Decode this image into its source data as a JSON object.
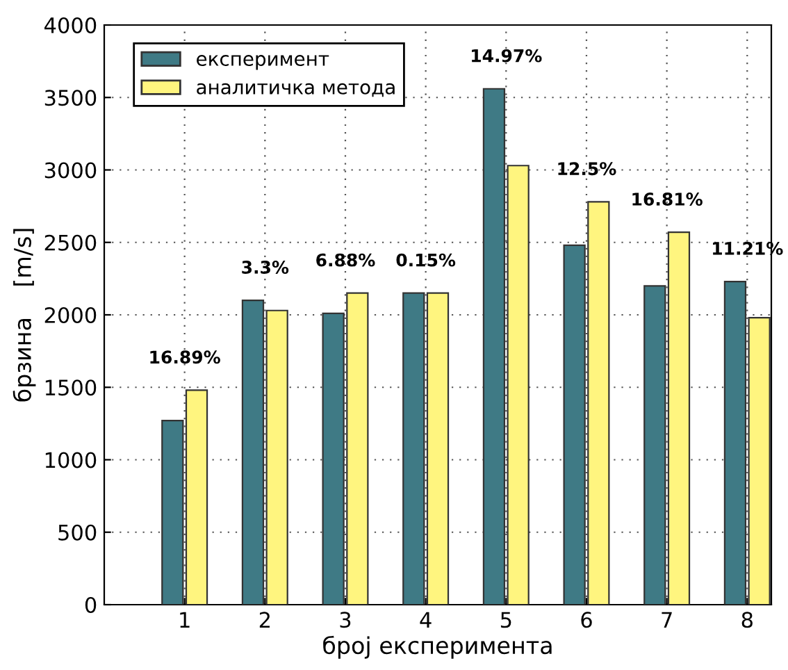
{
  "chart_data": {
    "type": "bar",
    "xlabel": "број експеримента",
    "ylabel": "брзина    [m/s]",
    "x": [
      1,
      2,
      3,
      4,
      5,
      6,
      7,
      8
    ],
    "series": [
      {
        "name": "експеримент",
        "color": "#3f7a85",
        "values": [
          1270,
          2100,
          2010,
          2150,
          3560,
          2480,
          2200,
          2230
        ]
      },
      {
        "name": "аналитичка метода",
        "color": "#fff57f",
        "values": [
          1480,
          2030,
          2150,
          2150,
          3030,
          2780,
          2570,
          1980
        ]
      }
    ],
    "xlim": [
      0,
      8.3
    ],
    "xticks": [
      1,
      2,
      3,
      4,
      5,
      6,
      7,
      8
    ],
    "ylim": [
      0,
      4000
    ],
    "yticks": [
      0,
      500,
      1000,
      1500,
      2000,
      2500,
      3000,
      3500,
      4000
    ],
    "grid": true,
    "legend": "top left",
    "annotations": [
      {
        "text": "16.89%",
        "x": 1,
        "y": 1480
      },
      {
        "text": "3.3%",
        "x": 2,
        "y": 2100
      },
      {
        "text": "6.88%",
        "x": 3,
        "y": 2150
      },
      {
        "text": "0.15%",
        "x": 4,
        "y": 2150
      },
      {
        "text": "14.97%",
        "x": 5,
        "y": 3560
      },
      {
        "text": "12.5%",
        "x": 6,
        "y": 2780
      },
      {
        "text": "16.81%",
        "x": 7,
        "y": 2570
      },
      {
        "text": "11.21%",
        "x": 8,
        "y": 2230
      }
    ]
  }
}
